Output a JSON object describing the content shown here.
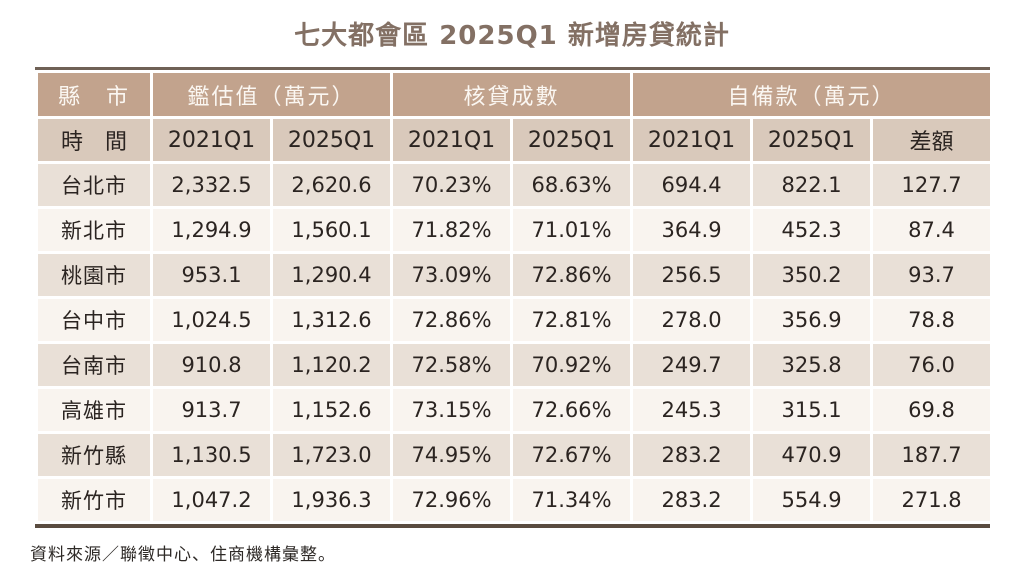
{
  "title": "七大都會區 2025Q1 新增房貸統計",
  "source_note": "資料來源／聯徵中心、住商機構彙整。",
  "colors": {
    "title_text": "#837064",
    "group_header_bg": "#c2a38d",
    "group_header_text": "#fbf7f2",
    "sub_header_bg": "#d9c9bb",
    "row_odd_bg": "#e9e0d7",
    "row_even_bg": "#f9f4ef",
    "body_text": "#2b2421",
    "table_top_border": "#6f6156",
    "table_bottom_border": "#5a4c40"
  },
  "chart_data": {
    "type": "table",
    "title": "七大都會區 2025Q1 新增房貸統計",
    "column_groups": [
      {
        "label": "縣　市",
        "span": 1
      },
      {
        "label": "鑑估值（萬元）",
        "span": 2
      },
      {
        "label": "核貸成數",
        "span": 2
      },
      {
        "label": "自備款（萬元）",
        "span": 3
      }
    ],
    "columns": [
      "時　間",
      "2021Q1",
      "2025Q1",
      "2021Q1",
      "2025Q1",
      "2021Q1",
      "2025Q1",
      "差額"
    ],
    "rows": [
      {
        "city": "台北市",
        "values": [
          "2,332.5",
          "2,620.6",
          "70.23%",
          "68.63%",
          "694.4",
          "822.1",
          "127.7"
        ]
      },
      {
        "city": "新北市",
        "values": [
          "1,294.9",
          "1,560.1",
          "71.82%",
          "71.01%",
          "364.9",
          "452.3",
          "87.4"
        ]
      },
      {
        "city": "桃園市",
        "values": [
          "953.1",
          "1,290.4",
          "73.09%",
          "72.86%",
          "256.5",
          "350.2",
          "93.7"
        ]
      },
      {
        "city": "台中市",
        "values": [
          "1,024.5",
          "1,312.6",
          "72.86%",
          "72.81%",
          "278.0",
          "356.9",
          "78.8"
        ]
      },
      {
        "city": "台南市",
        "values": [
          "910.8",
          "1,120.2",
          "72.58%",
          "70.92%",
          "249.7",
          "325.8",
          "76.0"
        ]
      },
      {
        "city": "高雄市",
        "values": [
          "913.7",
          "1,152.6",
          "73.15%",
          "72.66%",
          "245.3",
          "315.1",
          "69.8"
        ]
      },
      {
        "city": "新竹縣",
        "values": [
          "1,130.5",
          "1,723.0",
          "74.95%",
          "72.67%",
          "283.2",
          "470.9",
          "187.7"
        ]
      },
      {
        "city": "新竹市",
        "values": [
          "1,047.2",
          "1,936.3",
          "72.96%",
          "71.34%",
          "283.2",
          "554.9",
          "271.8"
        ]
      }
    ],
    "source": "資料來源／聯徵中心、住商機構彙整。"
  }
}
